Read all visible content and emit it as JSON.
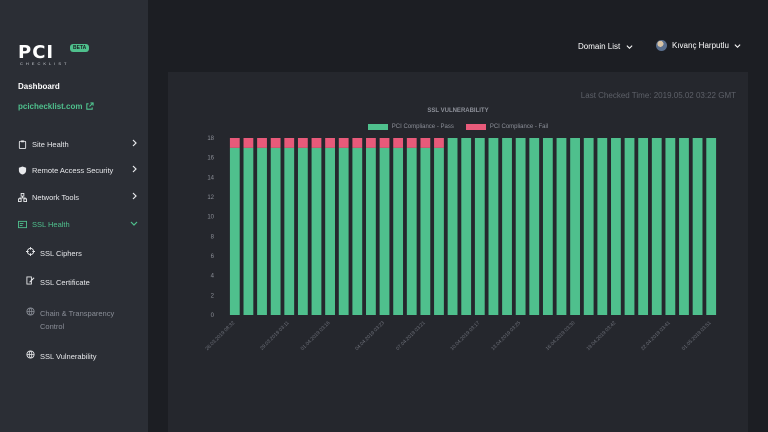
{
  "logo": {
    "text": "PCI",
    "sub": "CHECKLIST",
    "badge": "BETA"
  },
  "sidebar": {
    "dashboard": "Dashboard",
    "site": "pcichecklist.com",
    "items": [
      {
        "label": "Site Health",
        "icon": "clipboard-icon"
      },
      {
        "label": "Remote Access Security",
        "icon": "shield-icon"
      },
      {
        "label": "Network Tools",
        "icon": "network-icon"
      },
      {
        "label": "SSL Health",
        "icon": "certificate-icon"
      }
    ],
    "subitems": [
      {
        "label": "SSL Ciphers",
        "icon": "crosshair-icon"
      },
      {
        "label": "SSL Certificate",
        "icon": "document-edit-icon"
      },
      {
        "label": "Chain & Transparency Control",
        "icon": "globe-icon"
      },
      {
        "label": "SSL Vulnerability",
        "icon": "globe-icon"
      }
    ]
  },
  "topbar": {
    "domain_list": "Domain List",
    "user": "Kıvanç Harputlu"
  },
  "panel": {
    "last_checked": "Last Checked Time: 2019.05.02 03:22 GMT"
  },
  "colors": {
    "pass": "#4fc08d",
    "fail": "#e85a7a",
    "accent": "#4fc08d"
  },
  "chart_data": {
    "type": "bar",
    "stacked": true,
    "title": "SSL VULNERABILITY",
    "legend_position": "top-center",
    "ylim": [
      0,
      18
    ],
    "yticks": [
      0,
      2,
      4,
      6,
      8,
      10,
      12,
      14,
      16,
      18
    ],
    "categories": [
      "1",
      "2",
      "3",
      "4",
      "5",
      "6",
      "7",
      "8",
      "9",
      "10",
      "11",
      "12",
      "13",
      "14",
      "15",
      "16",
      "17",
      "18",
      "19",
      "20",
      "21",
      "22",
      "23",
      "24",
      "25",
      "26",
      "27",
      "28",
      "29",
      "30",
      "31",
      "32",
      "33",
      "34",
      "35",
      "36"
    ],
    "xtick_labels": [
      "26.03.2019 08:32",
      "29.03.2019 03:11",
      "01.04.2019 03:16",
      "04.04.2019 03:23",
      "07.04.2019 03:21",
      "10.04.2019 03:17",
      "13.04.2019 03:25",
      "16.04.2019 03:30",
      "19.04.2019 03:42",
      "22.04.2019 03:41",
      "01.05.2019 03:51"
    ],
    "series": [
      {
        "name": "PCI Compliance - Pass",
        "values": [
          17,
          17,
          17,
          17,
          17,
          17,
          17,
          17,
          17,
          17,
          17,
          17,
          17,
          17,
          17,
          17,
          18,
          18,
          18,
          18,
          18,
          18,
          18,
          18,
          18,
          18,
          18,
          18,
          18,
          18,
          18,
          18,
          18,
          18,
          18,
          18
        ]
      },
      {
        "name": "PCI Compliance - Fail",
        "values": [
          1,
          1,
          1,
          1,
          1,
          1,
          1,
          1,
          1,
          1,
          1,
          1,
          1,
          1,
          1,
          1,
          0,
          0,
          0,
          0,
          0,
          0,
          0,
          0,
          0,
          0,
          0,
          0,
          0,
          0,
          0,
          0,
          0,
          0,
          0,
          0
        ]
      }
    ]
  }
}
